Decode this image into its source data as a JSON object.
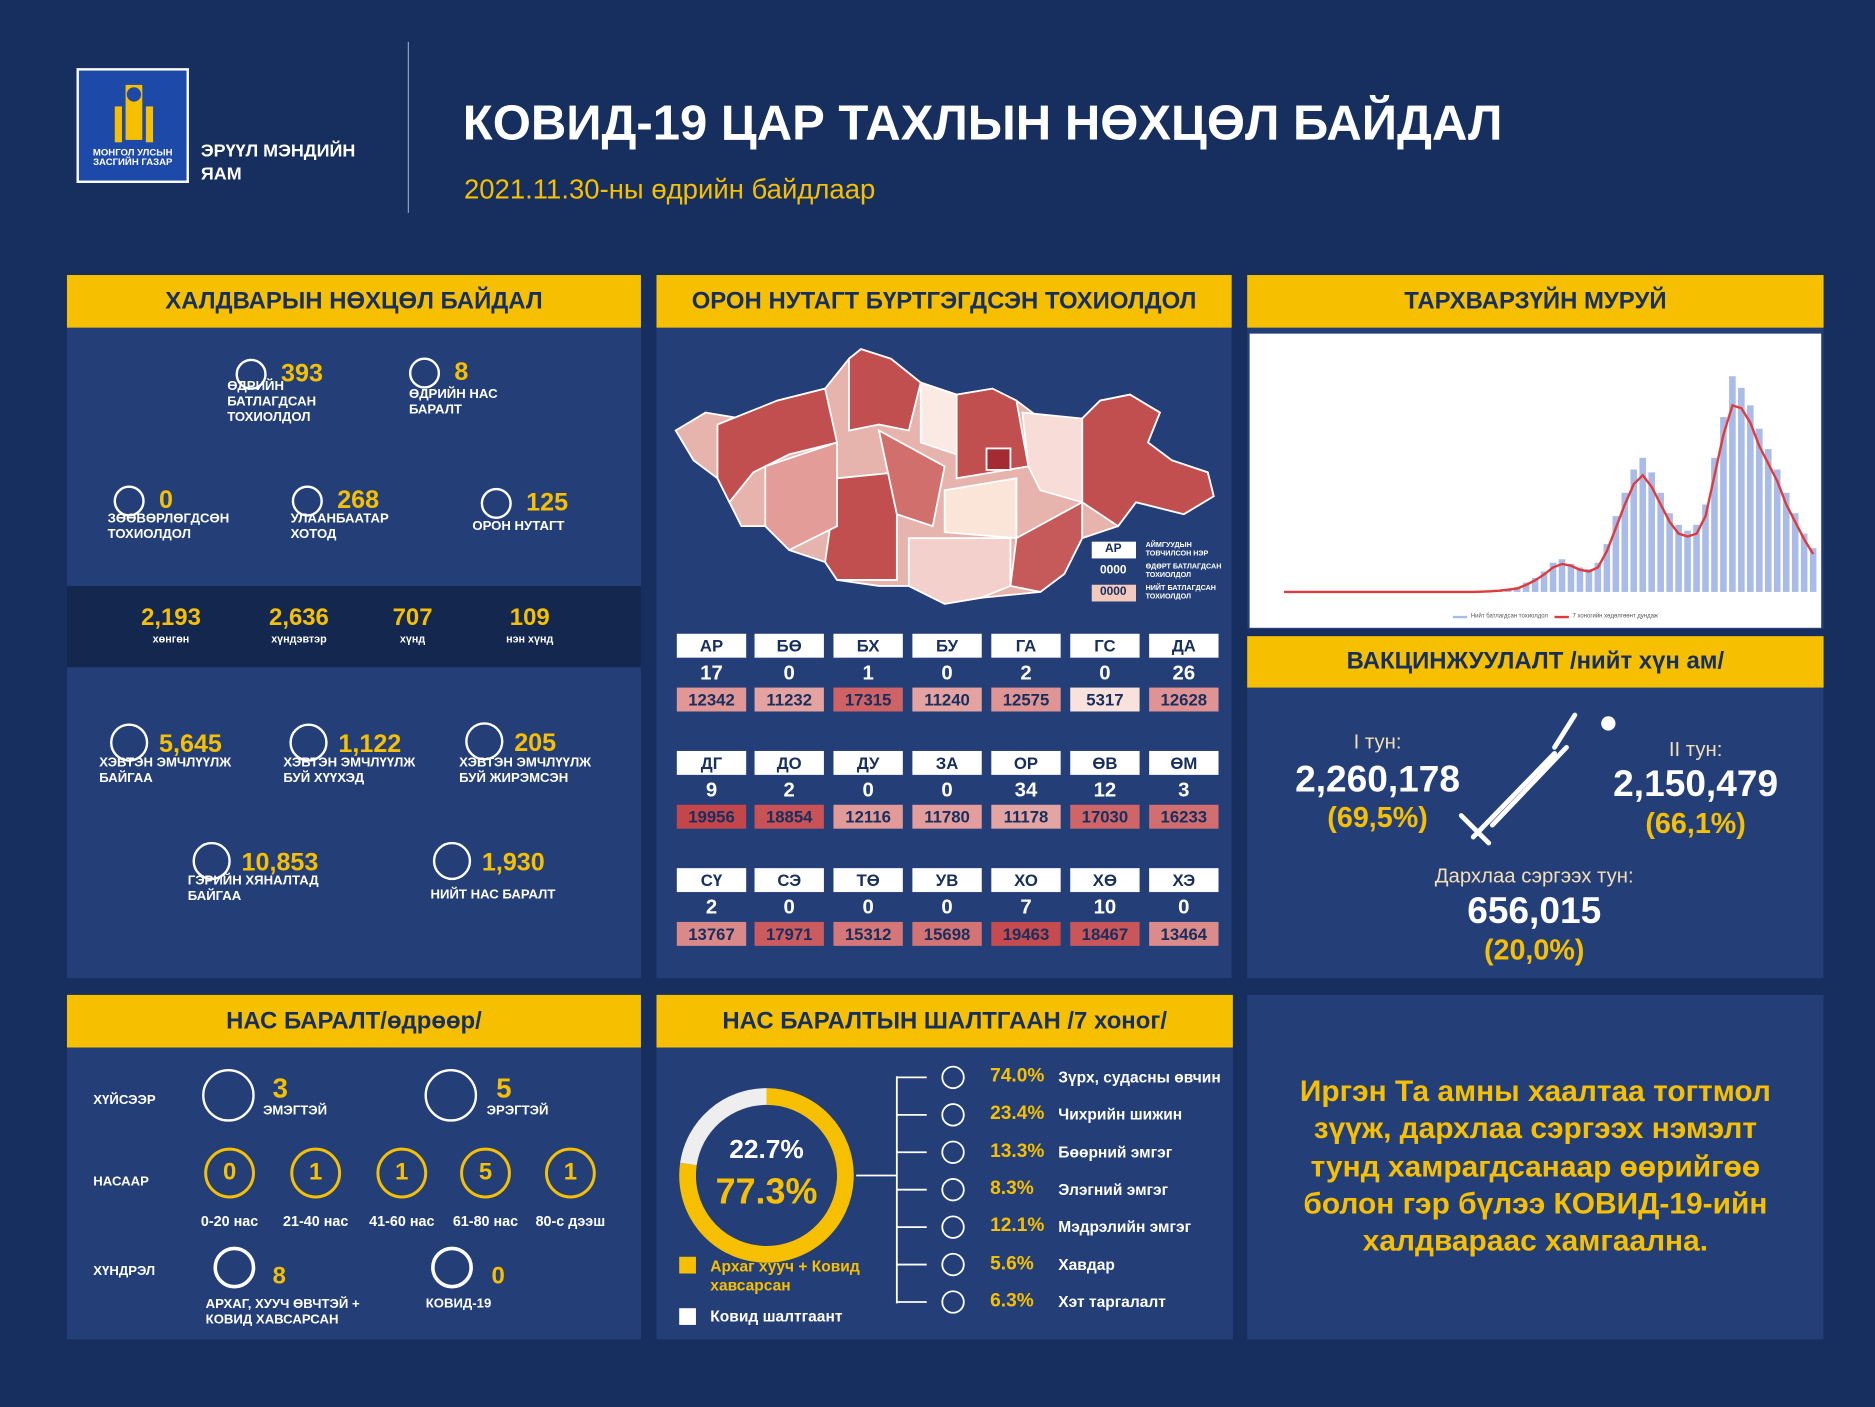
{
  "header": {
    "ministry_org": "МОНГОЛ УЛСЫН ЗАСГИЙН ГАЗАР",
    "ministry": "ЭРҮҮЛ МЭНДИЙН ЯАМ",
    "title": "КОВИД-19 ЦАР ТАХЛЫН НӨХЦӨЛ БАЙДАЛ",
    "date": "2021.11.30-ны өдрийн байдлаар"
  },
  "infection": {
    "title": "ХАЛДВАРЫН НӨХЦӨЛ БАЙДАЛ",
    "stats": [
      {
        "value": "393",
        "label": "ӨДРИЙН БАТЛАГДСАН ТОХИОЛДОЛ"
      },
      {
        "value": "8",
        "label": "ӨДРИЙН НАС БАРАЛТ"
      },
      {
        "value": "0",
        "label": "ЗӨӨВӨРЛӨГДСӨН ТОХИОЛДОЛ"
      },
      {
        "value": "268",
        "label": "УЛААНБААТАР ХОТОД"
      },
      {
        "value": "125",
        "label": "ОРОН НУТАГТ"
      }
    ],
    "severity": [
      {
        "value": "2,193",
        "label": "хөнгөн"
      },
      {
        "value": "2,636",
        "label": "хүндэвтэр"
      },
      {
        "value": "707",
        "label": "хүнд"
      },
      {
        "value": "109",
        "label": "нэн хүнд"
      }
    ],
    "care": [
      {
        "value": "5,645",
        "label": "ХЭВТЭН ЭМЧЛҮҮЛЖ БАЙГАА"
      },
      {
        "value": "1,122",
        "label": "ХЭВТЭН ЭМЧЛҮҮЛЖ БУЙ ХҮҮХЭД"
      },
      {
        "value": "205",
        "label": "ХЭВТЭН ЭМЧЛҮҮЛЖ БУЙ ЖИРЭМСЭН"
      },
      {
        "value": "10,853",
        "label": "ГЭРИЙН ХЯНАЛТАД БАЙГАА"
      },
      {
        "value": "1,930",
        "label": "НИЙТ НАС БАРАЛТ"
      }
    ]
  },
  "regions": {
    "title": "ОРОН НУТАГТ БҮРТГЭГДСЭН ТОХИОЛДОЛ",
    "aimags": [
      {
        "code": "АР",
        "daily": 17,
        "total": 12342
      },
      {
        "code": "БӨ",
        "daily": 0,
        "total": 11232
      },
      {
        "code": "БХ",
        "daily": 1,
        "total": 17315
      },
      {
        "code": "БУ",
        "daily": 0,
        "total": 11240
      },
      {
        "code": "ГА",
        "daily": 2,
        "total": 12575
      },
      {
        "code": "ГС",
        "daily": 0,
        "total": 5317
      },
      {
        "code": "ДА",
        "daily": 26,
        "total": 12628
      },
      {
        "code": "ДГ",
        "daily": 9,
        "total": 19956
      },
      {
        "code": "ДО",
        "daily": 2,
        "total": 18854
      },
      {
        "code": "ДУ",
        "daily": 0,
        "total": 12116
      },
      {
        "code": "ЗА",
        "daily": 0,
        "total": 11780
      },
      {
        "code": "ОР",
        "daily": 34,
        "total": 11178
      },
      {
        "code": "ӨВ",
        "daily": 12,
        "total": 17030
      },
      {
        "code": "ӨМ",
        "daily": 3,
        "total": 16233
      },
      {
        "code": "СҮ",
        "daily": 2,
        "total": 13767
      },
      {
        "code": "СЭ",
        "daily": 0,
        "total": 17971
      },
      {
        "code": "ТӨ",
        "daily": 0,
        "total": 15312
      },
      {
        "code": "УВ",
        "daily": 0,
        "total": 15698
      },
      {
        "code": "ХО",
        "daily": 7,
        "total": 19463
      },
      {
        "code": "ХӨ",
        "daily": 10,
        "total": 18467
      },
      {
        "code": "ХЭ",
        "daily": 0,
        "total": 13464
      }
    ],
    "legend": [
      {
        "sample": "АР",
        "label": "АЙМГУУДЫН ТОВЧИЛСОН НЭР"
      },
      {
        "sample": "0000",
        "label": "ӨДӨРТ БАТЛАГДСАН ТОХИОЛДОЛ"
      },
      {
        "sample": "0000",
        "label": "НИЙТ БАТЛАГДСАН ТОХИОЛДОЛ"
      }
    ]
  },
  "curve_title": "ТАРХВАРЗҮЙН МУРУЙ",
  "chart_data": [
    {
      "type": "bar",
      "ylim": [
        0,
        4000
      ],
      "series": [
        {
          "name": "Нийт батлагдсан тохиолдол",
          "type": "bar",
          "color": "#a9bbe8",
          "values": [
            0,
            0,
            0,
            0,
            0,
            0,
            0,
            0,
            0,
            0,
            0,
            0,
            0,
            0,
            0,
            0,
            0,
            0,
            0,
            0,
            0,
            0,
            8,
            15,
            30,
            55,
            80,
            160,
            240,
            350,
            500,
            560,
            480,
            420,
            390,
            500,
            820,
            1300,
            1700,
            2100,
            2300,
            2050,
            1700,
            1350,
            1150,
            1050,
            1150,
            1500,
            2300,
            3000,
            3700,
            3500,
            3200,
            2800,
            2450,
            2100,
            1700,
            1350,
            1000,
            750
          ]
        },
        {
          "name": "7 хоногийн хөдөлгөөнт дундаж",
          "type": "line",
          "color": "#e23a3a",
          "values": [
            0,
            0,
            0,
            0,
            0,
            0,
            0,
            0,
            0,
            0,
            0,
            0,
            0,
            0,
            0,
            0,
            0,
            0,
            0,
            0,
            0,
            0,
            5,
            10,
            20,
            40,
            60,
            120,
            200,
            300,
            420,
            480,
            450,
            380,
            350,
            420,
            700,
            1100,
            1500,
            1850,
            2000,
            1800,
            1500,
            1200,
            1000,
            950,
            1000,
            1300,
            2000,
            2700,
            3200,
            3150,
            2900,
            2500,
            2200,
            1900,
            1500,
            1200,
            900,
            650
          ]
        }
      ]
    },
    {
      "type": "pie",
      "values": [
        22.7,
        77.3
      ],
      "value_labels": [
        "22.7%",
        "77.3%"
      ],
      "labels": [
        "Ковид шалтгаант",
        "Архаг хууч + Ковид хавсарсан"
      ],
      "colors": [
        "#eeeeee",
        "#f6c000"
      ]
    }
  ],
  "vaccination": {
    "title": "ВАКЦИНЖУУЛАЛТ /нийт хүн ам/",
    "doses": [
      {
        "label": "I тун:",
        "value": "2,260,178",
        "share": "(69,5%)"
      },
      {
        "label": "II тун:",
        "value": "2,150,479",
        "share": "(66,1%)"
      },
      {
        "label": "Дархлаа сэргээх тун:",
        "value": "656,015",
        "share": "(20,0%)"
      }
    ]
  },
  "deaths": {
    "title": "НАС БАРАЛТ/өдрөөр/",
    "by_sex_label": "ХҮЙСЭЭР",
    "sex": [
      {
        "value": "3",
        "label": "ЭМЭГТЭЙ"
      },
      {
        "value": "5",
        "label": "ЭРЭГТЭЙ"
      }
    ],
    "by_age_label": "НАСААР",
    "ages": [
      {
        "value": "0",
        "label": "0-20 нас"
      },
      {
        "value": "1",
        "label": "21-40 нас"
      },
      {
        "value": "1",
        "label": "41-60 нас"
      },
      {
        "value": "5",
        "label": "61-80 нас"
      },
      {
        "value": "1",
        "label": "80-с дээш"
      }
    ],
    "by_cause_label": "ХҮНДРЭЛ",
    "causes": [
      {
        "value": "8",
        "label": "АРХАГ, ХУУЧ ӨВЧТЭЙ + КОВИД ХАВСАРСАН"
      },
      {
        "value": "0",
        "label": "КОВИД-19"
      }
    ]
  },
  "death_causes": {
    "title": "НАС БАРАЛТЫН ШАЛТГААН /7 хоног/",
    "items": [
      {
        "share": "74.0%",
        "label": "Зүрх, судасны өвчин"
      },
      {
        "share": "23.4%",
        "label": "Чихрийн шижин"
      },
      {
        "share": "13.3%",
        "label": "Бөөрний эмгэг"
      },
      {
        "share": "8.3%",
        "label": "Элэгний эмгэг"
      },
      {
        "share": "12.1%",
        "label": "Мэдрэлийн эмгэг"
      },
      {
        "share": "5.6%",
        "label": "Хавдар"
      },
      {
        "share": "6.3%",
        "label": "Хэт таргалалт"
      }
    ]
  },
  "message": {
    "lines": [
      "Иргэн Та амны хаалтаа тогтмол",
      "зүүж, дархлаа сэргээх нэмэлт",
      "тунд хамрагдсанаар өөрийгөө",
      "болон гэр бүлээ КОВИД-19-ийн",
      "халдвараас хамгаална."
    ]
  }
}
